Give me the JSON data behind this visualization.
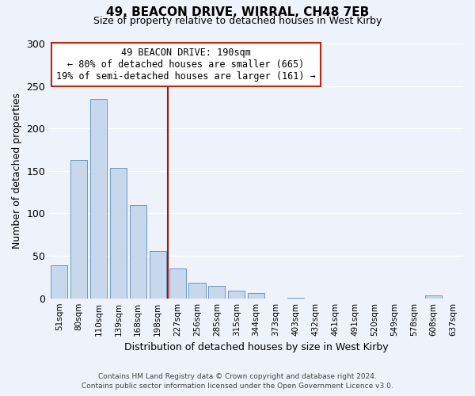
{
  "title": "49, BEACON DRIVE, WIRRAL, CH48 7EB",
  "subtitle": "Size of property relative to detached houses in West Kirby",
  "xlabel": "Distribution of detached houses by size in West Kirby",
  "ylabel": "Number of detached properties",
  "categories": [
    "51sqm",
    "80sqm",
    "110sqm",
    "139sqm",
    "168sqm",
    "198sqm",
    "227sqm",
    "256sqm",
    "285sqm",
    "315sqm",
    "344sqm",
    "373sqm",
    "403sqm",
    "432sqm",
    "461sqm",
    "491sqm",
    "520sqm",
    "549sqm",
    "578sqm",
    "608sqm",
    "637sqm"
  ],
  "values": [
    39,
    163,
    235,
    154,
    110,
    56,
    35,
    18,
    15,
    9,
    6,
    0,
    1,
    0,
    0,
    0,
    0,
    0,
    0,
    3,
    0
  ],
  "bar_color": "#c8d8ec",
  "bar_edge_color": "#6699cc",
  "vline_x": 5.5,
  "annotation_line1": "49 BEACON DRIVE: 190sqm",
  "annotation_line2": "← 80% of detached houses are smaller (665)",
  "annotation_line3": "19% of semi-detached houses are larger (161) →",
  "box_color": "#ffffff",
  "box_edge_color": "#cc2200",
  "vline_color": "#aa1100",
  "ylim": [
    0,
    300
  ],
  "yticks": [
    0,
    50,
    100,
    150,
    200,
    250,
    300
  ],
  "footer_line1": "Contains HM Land Registry data © Crown copyright and database right 2024.",
  "footer_line2": "Contains public sector information licensed under the Open Government Licence v3.0.",
  "bg_color": "#eef2fa",
  "plot_bg_color": "#eef2fa",
  "grid_color": "#ffffff",
  "title_fontsize": 11,
  "subtitle_fontsize": 9
}
